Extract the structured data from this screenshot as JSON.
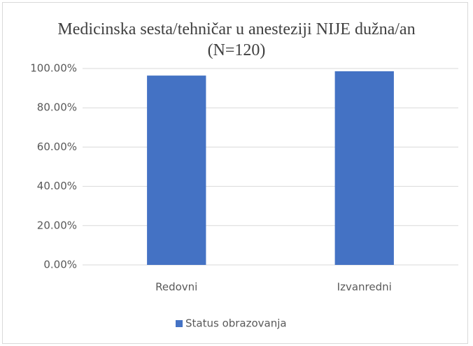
{
  "chart_data": {
    "type": "bar",
    "title": "Medicinska sesta/tehničar u anesteziji NIJE dužna/an  (N=120)",
    "categories": [
      "Redovni",
      "Izvanredni"
    ],
    "series": [
      {
        "name": "Status obrazovanja",
        "color": "#4472c4",
        "values": [
          96.4,
          98.6
        ]
      }
    ],
    "ylim": [
      0,
      100
    ],
    "yticks": [
      {
        "value": 0,
        "label": "0.00%"
      },
      {
        "value": 20,
        "label": "20.00%"
      },
      {
        "value": 40,
        "label": "40.00%"
      },
      {
        "value": 60,
        "label": "60.00%"
      },
      {
        "value": 80,
        "label": "80.00%"
      },
      {
        "value": 100,
        "label": "100.00%"
      }
    ],
    "grid": true,
    "legend": "bottom"
  }
}
